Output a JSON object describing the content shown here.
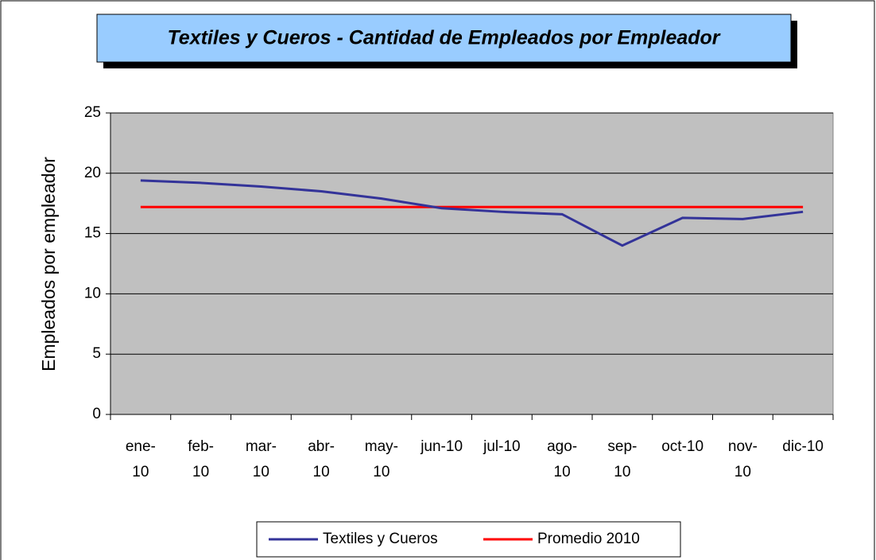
{
  "chart_data": {
    "type": "line",
    "title": "Textiles y Cueros - Cantidad de Empleados por Empleador",
    "y_label": "Empleados por empleador",
    "categories": [
      "ene-10",
      "feb-10",
      "mar-10",
      "abr-10",
      "may-10",
      "jun-10",
      "jul-10",
      "ago-10",
      "sep-10",
      "oct-10",
      "nov-10",
      "dic-10"
    ],
    "series": [
      {
        "name": "Textiles y Cueros",
        "color": "#333399",
        "values": [
          19.4,
          19.2,
          18.9,
          18.5,
          17.9,
          17.1,
          16.8,
          16.6,
          14.0,
          16.3,
          16.2,
          16.8
        ]
      },
      {
        "name": "Promedio 2010",
        "color": "#ff0000",
        "values": [
          17.2,
          17.2,
          17.2,
          17.2,
          17.2,
          17.2,
          17.2,
          17.2,
          17.2,
          17.2,
          17.2,
          17.2
        ]
      }
    ],
    "ylim": [
      0,
      25
    ],
    "yticks": [
      0,
      5,
      10,
      15,
      20,
      25
    ],
    "grid": true,
    "legend": "bottom"
  }
}
